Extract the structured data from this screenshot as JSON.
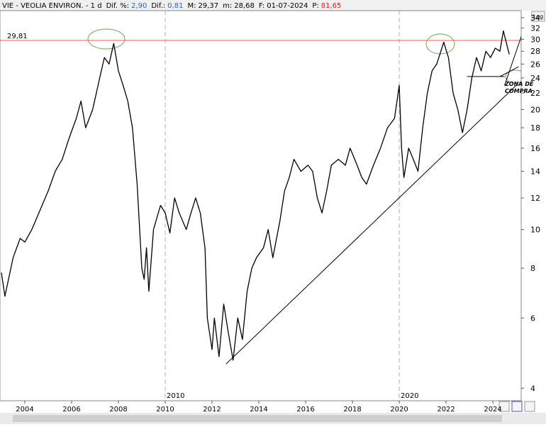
{
  "header": {
    "symbol": "VIE - VEOLIA ENVIRON. - 1 d",
    "fields": [
      {
        "label": "Dif. %:",
        "value": "2,90",
        "color": "#2a62c8"
      },
      {
        "label": "Dif.:",
        "value": "0,81",
        "color": "#2a62c8"
      },
      {
        "label": "M:",
        "value": "29,37",
        "color": "#000000"
      },
      {
        "label": "m:",
        "value": "28,68",
        "color": "#000000"
      },
      {
        "label": "F:",
        "value": "01-07-2024",
        "color": "#000000"
      },
      {
        "label": "P:",
        "value": "81,65",
        "color": "#e02020"
      }
    ]
  },
  "ui": {
    "log_button": "Log"
  },
  "chart_data": {
    "type": "line",
    "color": "#000000",
    "log_scale": true,
    "x": [
      2003.0,
      2003.15,
      2003.5,
      2003.8,
      2004.0,
      2004.3,
      2004.6,
      2005.0,
      2005.3,
      2005.6,
      2005.9,
      2006.2,
      2006.4,
      2006.6,
      2006.9,
      2007.2,
      2007.4,
      2007.6,
      2007.8,
      2008.0,
      2008.2,
      2008.4,
      2008.6,
      2008.8,
      2009.0,
      2009.1,
      2009.2,
      2009.3,
      2009.5,
      2009.8,
      2010.0,
      2010.2,
      2010.4,
      2010.6,
      2010.9,
      2011.1,
      2011.3,
      2011.5,
      2011.7,
      2011.8,
      2012.0,
      2012.1,
      2012.3,
      2012.5,
      2012.7,
      2012.9,
      2013.1,
      2013.3,
      2013.5,
      2013.7,
      2013.9,
      2014.2,
      2014.4,
      2014.6,
      2014.9,
      2015.1,
      2015.3,
      2015.5,
      2015.8,
      2016.1,
      2016.3,
      2016.5,
      2016.7,
      2016.9,
      2017.1,
      2017.4,
      2017.7,
      2017.9,
      2018.2,
      2018.4,
      2018.6,
      2018.9,
      2019.2,
      2019.5,
      2019.8,
      2020.0,
      2020.1,
      2020.2,
      2020.4,
      2020.6,
      2020.8,
      2021.0,
      2021.2,
      2021.4,
      2021.6,
      2021.9,
      2022.1,
      2022.3,
      2022.5,
      2022.7,
      2022.9,
      2023.1,
      2023.3,
      2023.5,
      2023.7,
      2023.9,
      2024.1,
      2024.3,
      2024.45,
      2024.6,
      2024.7
    ],
    "values": [
      7.8,
      6.8,
      8.5,
      9.5,
      9.3,
      10.0,
      11.0,
      12.5,
      14.0,
      15.0,
      17.0,
      19.0,
      21.0,
      18.0,
      20.0,
      24.0,
      27.0,
      26.0,
      29.3,
      25.0,
      23.0,
      21.0,
      18.0,
      13.0,
      8.0,
      7.5,
      9.0,
      7.0,
      10.0,
      11.5,
      11.0,
      9.8,
      12.0,
      11.0,
      10.0,
      11.0,
      12.0,
      11.0,
      9.0,
      6.0,
      5.0,
      6.0,
      4.8,
      6.5,
      5.5,
      4.7,
      6.0,
      5.3,
      7.0,
      8.0,
      8.5,
      9.0,
      10.0,
      8.5,
      10.5,
      12.5,
      13.5,
      15.0,
      14.0,
      14.5,
      14.0,
      12.0,
      11.0,
      12.5,
      14.5,
      15.0,
      14.5,
      16.0,
      14.5,
      13.5,
      13.0,
      14.5,
      16.0,
      18.0,
      19.0,
      23.0,
      16.0,
      13.5,
      16.0,
      15.0,
      14.0,
      18.0,
      22.0,
      25.0,
      26.0,
      29.5,
      27.0,
      22.0,
      20.0,
      17.5,
      20.0,
      24.0,
      27.0,
      25.0,
      28.0,
      27.0,
      28.5,
      28.0,
      31.5,
      29.0,
      27.5
    ],
    "xlim": [
      2002.94,
      2025.21
    ],
    "ylim": [
      3.72,
      35.4
    ],
    "xticks": [
      2004,
      2006,
      2008,
      2010,
      2012,
      2014,
      2016,
      2018,
      2020,
      2022,
      2024
    ],
    "yticks": [
      4,
      6,
      8,
      10,
      12,
      14,
      16,
      18,
      20,
      22,
      24,
      26,
      28,
      30,
      32,
      34
    ],
    "period_markers": [
      2010,
      2020
    ],
    "hline": {
      "value": 29.81,
      "label": "29,81",
      "color": "#e8643c"
    },
    "lines": [
      {
        "x": [
          2012.6,
          2025.0
        ],
        "y": [
          4.6,
          23.0
        ]
      },
      {
        "x": [
          2024.5,
          2025.9
        ],
        "y": [
          23.0,
          40.0
        ]
      },
      {
        "x": [
          2022.9,
          2024.5
        ],
        "y": [
          24.2,
          24.2
        ]
      },
      {
        "x": [
          2024.3,
          2025.1
        ],
        "y": [
          24.2,
          25.6
        ]
      }
    ],
    "annotation": [
      "ZONA DE",
      "COMPRA"
    ]
  }
}
